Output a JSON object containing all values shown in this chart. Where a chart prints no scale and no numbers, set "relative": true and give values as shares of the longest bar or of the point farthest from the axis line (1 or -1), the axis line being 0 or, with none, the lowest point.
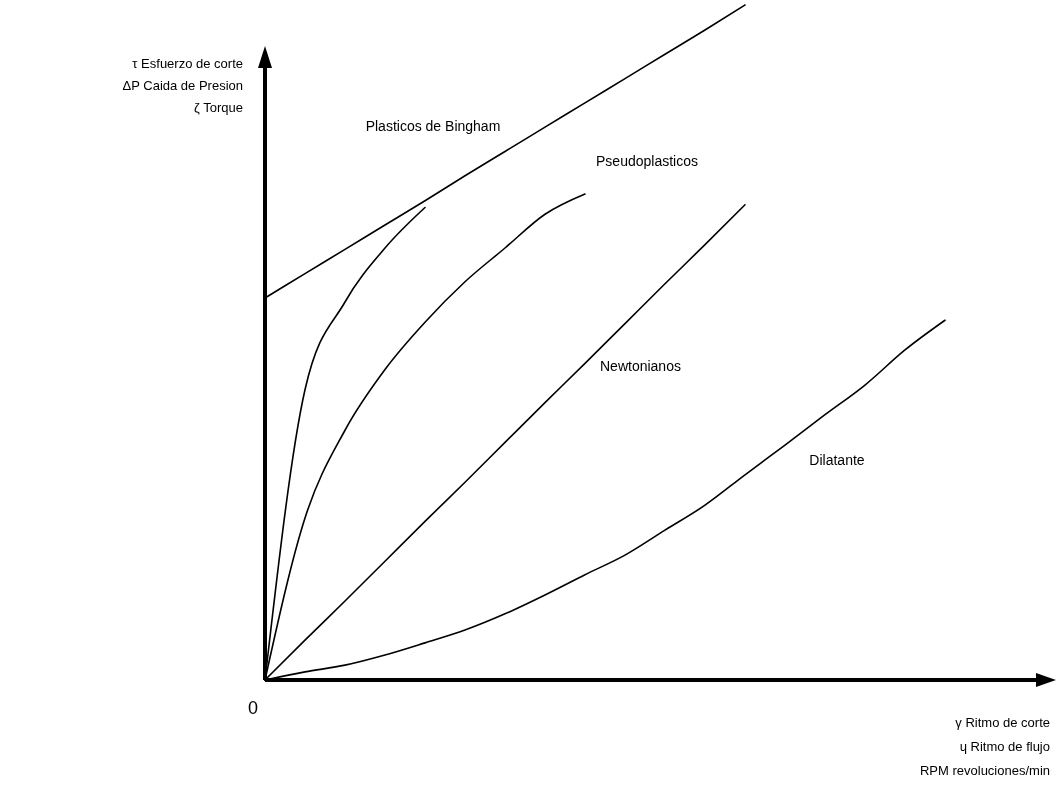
{
  "chart_data": {
    "type": "line",
    "relative": true,
    "xlabel": "γ Ritmo de corte\nɥ Ritmo de flujo\nRPM revoluciones/min",
    "ylabel": "τ Esfuerzo de corte\nΔP Caida de Presion\nζ Torque",
    "annotations": [
      "0"
    ],
    "categories": [
      null,
      null,
      null,
      null,
      null,
      null,
      null,
      null,
      null,
      null,
      null,
      null,
      null,
      null,
      null,
      null,
      null,
      null,
      null,
      null
    ],
    "series": [
      {
        "name": "Plasticos de Bingham",
        "color": "#000000",
        "values": [
          0.566,
          0.602,
          0.638,
          0.674,
          0.71,
          0.747,
          0.783,
          0.819,
          0.855,
          0.891,
          0.927,
          0.963,
          1.0,
          null,
          null,
          null,
          null,
          null,
          null,
          null
        ]
      },
      {
        "color": "#000000",
        "values": [
          0,
          0.43,
          0.56,
          0.64,
          0.7,
          null,
          null,
          null,
          null,
          null,
          null,
          null,
          null,
          null,
          null,
          null,
          null,
          null,
          null,
          null
        ]
      },
      {
        "name": "Pseudoplasticos",
        "color": "#000000",
        "values": [
          0,
          0.24,
          0.37,
          0.46,
          0.53,
          0.59,
          0.64,
          0.69,
          0.72,
          null,
          null,
          null,
          null,
          null,
          null,
          null,
          null,
          null,
          null,
          null
        ]
      },
      {
        "name": "Newtonianos",
        "color": "#000000",
        "values": [
          0,
          0.059,
          0.117,
          0.176,
          0.235,
          0.293,
          0.352,
          0.411,
          0.469,
          0.528,
          0.587,
          0.645,
          0.704,
          null,
          null,
          null,
          null,
          null,
          null,
          null
        ]
      },
      {
        "name": "Dilatante",
        "color": "#000000",
        "values": [
          0,
          0.012,
          0.022,
          0.037,
          0.055,
          0.074,
          0.098,
          0.126,
          0.156,
          0.185,
          0.222,
          0.259,
          0.304,
          0.348,
          0.393,
          0.437,
          0.489,
          0.533,
          null,
          null
        ]
      }
    ]
  }
}
